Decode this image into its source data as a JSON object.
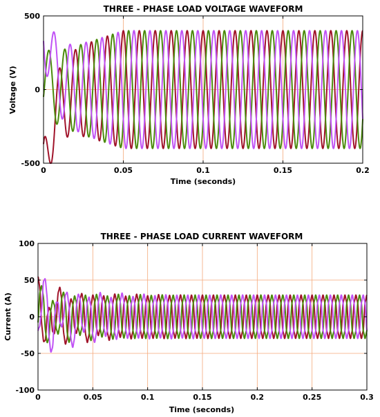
{
  "chart_data": [
    {
      "type": "line",
      "title": "THREE - PHASE LOAD VOLTAGE WAVEFORM",
      "xlabel": "Time (seconds)",
      "ylabel": "Voltage (V)",
      "xlim": [
        0,
        0.2
      ],
      "ylim": [
        -500,
        500
      ],
      "xticks": [
        0,
        0.05,
        0.1,
        0.15,
        0.2
      ],
      "xtick_labels": [
        "0",
        "0.05",
        "0.1",
        "0.15",
        "0.2"
      ],
      "yticks": [
        -500,
        0,
        500
      ],
      "ytick_labels": [
        "-500",
        "0",
        "500"
      ],
      "grid": true,
      "frequency_hz": 100,
      "series": [
        {
          "color": "#a0132a",
          "phase_deg": 90,
          "amplitude": 400,
          "initial_value": -370
        },
        {
          "color": "#4a8a0b",
          "phase_deg": -30,
          "amplitude": 400,
          "initial_value": -50
        },
        {
          "color": "#c052f5",
          "phase_deg": 210,
          "amplitude": 400,
          "initial_value": 330
        }
      ]
    },
    {
      "type": "line",
      "title": "THREE - PHASE LOAD CURRENT WAVEFORM",
      "xlabel": "Time (seconds)",
      "ylabel": "Current (A)",
      "xlim": [
        0,
        0.3
      ],
      "ylim": [
        -100,
        100
      ],
      "xticks": [
        0,
        0.05,
        0.1,
        0.15,
        0.2,
        0.25,
        0.3
      ],
      "xtick_labels": [
        "0",
        "0.05",
        "0.1",
        "0.15",
        "0.2",
        "0.25",
        "0.3"
      ],
      "yticks": [
        -100,
        -50,
        0,
        50,
        100
      ],
      "ytick_labels": [
        "-100",
        "-50",
        "0",
        "50",
        "100"
      ],
      "grid": true,
      "frequency_hz": 100,
      "series": [
        {
          "color": "#a0132a",
          "phase_deg": 90,
          "amplitude": 30,
          "transient_peak": 55
        },
        {
          "color": "#4a8a0b",
          "phase_deg": -30,
          "amplitude": 30,
          "transient_peak": 45
        },
        {
          "color": "#c052f5",
          "phase_deg": 210,
          "amplitude": 30,
          "transient_peak": 65
        }
      ]
    }
  ]
}
